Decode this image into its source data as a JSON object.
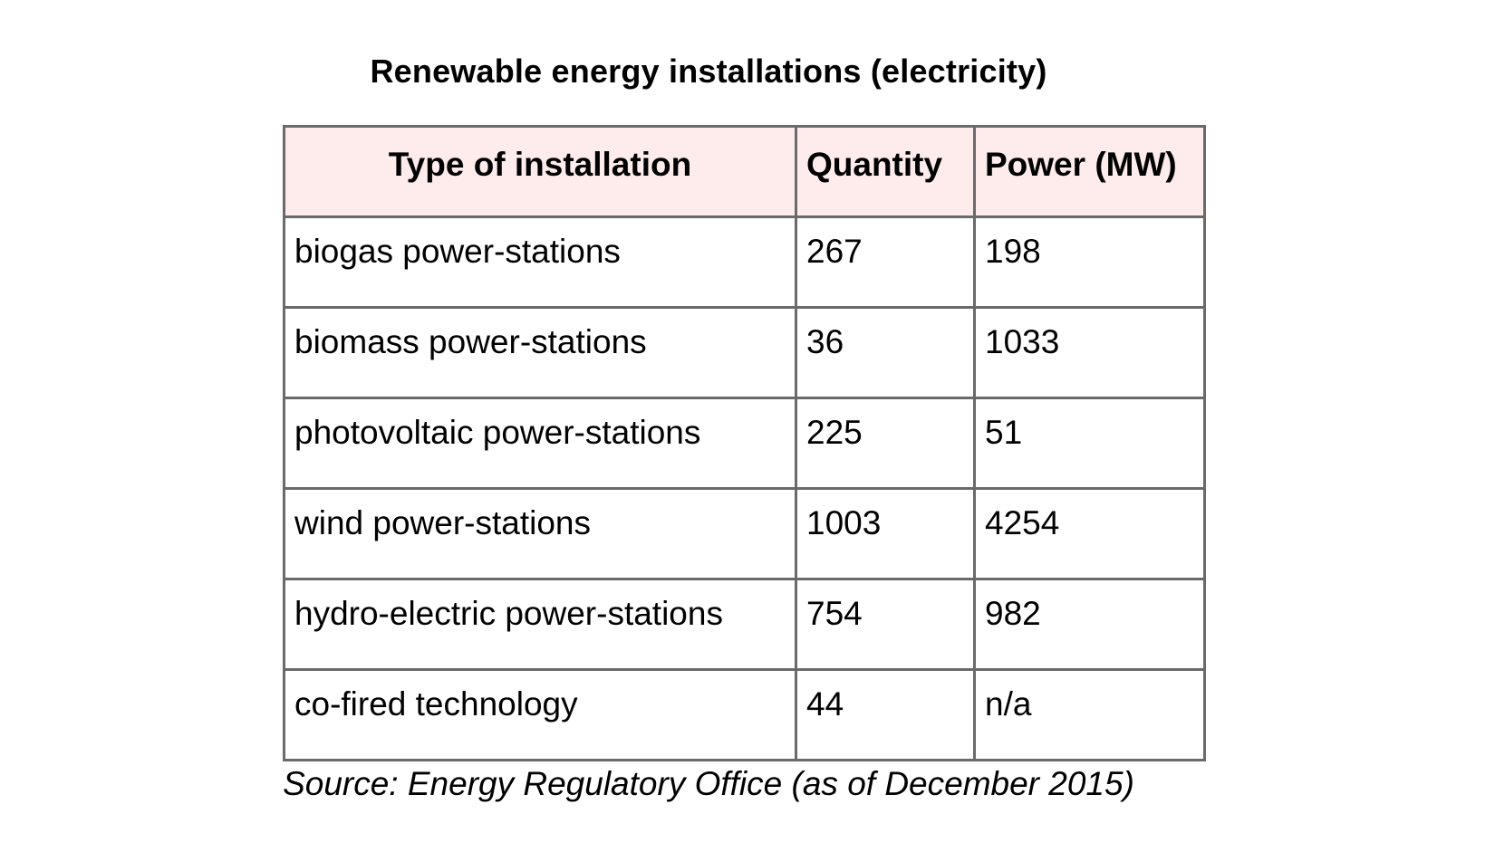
{
  "page": {
    "title": "Renewable energy installations (electricity)",
    "source_note": "Source: Energy Regulatory Office (as of December 2015)"
  },
  "table": {
    "headers": {
      "type": "Type of installation",
      "quantity": "Quantity",
      "power": "Power (MW)"
    },
    "rows": [
      {
        "type": "biogas power-stations",
        "quantity": "267",
        "power": "198"
      },
      {
        "type": "biomass power-stations",
        "quantity": "36",
        "power": "1033"
      },
      {
        "type": "photovoltaic power-stations",
        "quantity": "225",
        "power": "51"
      },
      {
        "type": "wind power-stations",
        "quantity": "1003",
        "power": "4254"
      },
      {
        "type": "hydro-electric power-stations",
        "quantity": "754",
        "power": "982"
      },
      {
        "type": "co-fired technology",
        "quantity": "44",
        "power": "n/a"
      }
    ]
  },
  "colors": {
    "header_bg": "#fdeceb",
    "border": "#6a6a6a",
    "text": "#000000"
  }
}
